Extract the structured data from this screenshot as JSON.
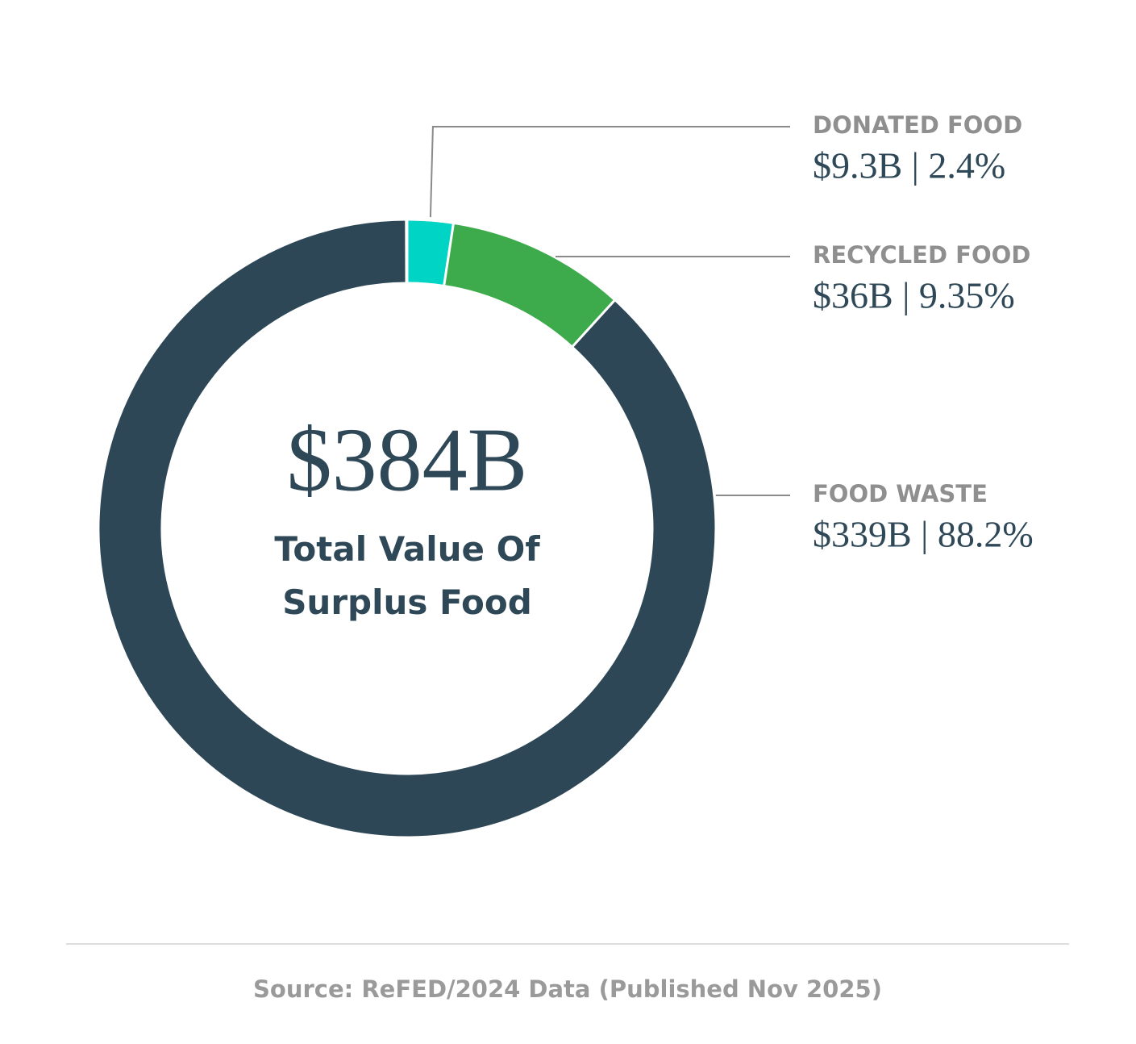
{
  "chart_data": {
    "type": "donut",
    "center_label": "$384B",
    "center_caption": "Total Value Of Surplus Food",
    "categories": [
      "DONATED FOOD",
      "RECYCLED FOOD",
      "FOOD WASTE"
    ],
    "values": [
      2.4,
      9.35,
      88.2
    ],
    "value_labels": [
      "$9.3B | 2.4%",
      "$36B | 9.35%",
      "$339B | 88.2%"
    ],
    "colors": [
      "#00d4c4",
      "#3dab4c",
      "#2e4756"
    ],
    "source": "Source: ReFED/2024 Data (Published Nov 2025)"
  }
}
